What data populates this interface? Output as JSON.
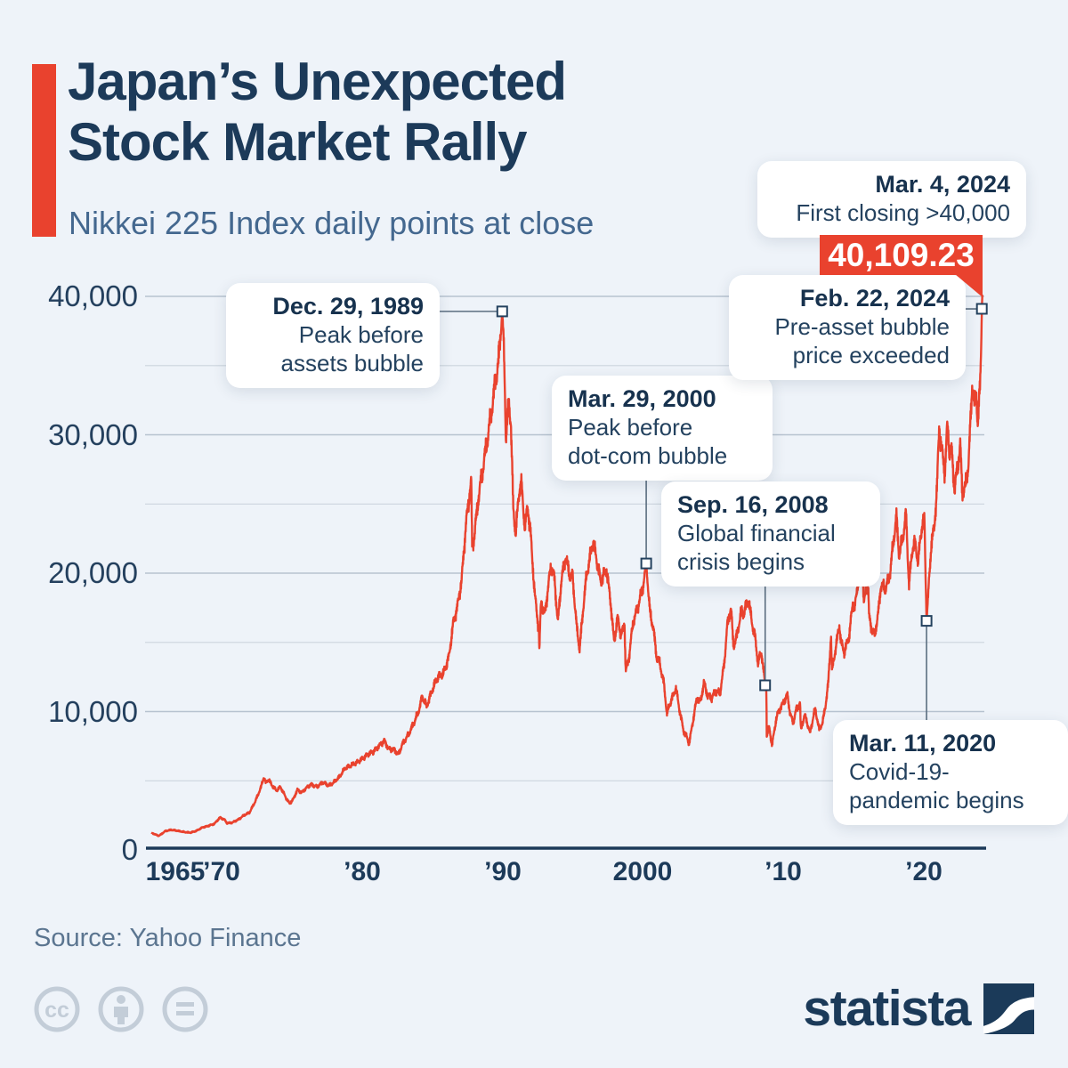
{
  "header": {
    "title_line1": "Japan’s Unexpected",
    "title_line2": "Stock Market Rally",
    "subtitle": "Nikkei 225 Index daily points at close"
  },
  "chart_data": {
    "type": "line",
    "title": "Nikkei 225 Index daily points at close",
    "xlabel": "",
    "ylabel": "",
    "xlim": [
      1965,
      2024.3
    ],
    "ylim": [
      0,
      42000
    ],
    "grid": "horizontal, minor step 5000, major step 10000",
    "legend": "none",
    "line_color": "#e9422e",
    "x_ticks": [
      {
        "year": 1965,
        "label": "1965",
        "dx": 27
      },
      {
        "year": 1970,
        "label": "’70",
        "dx": 0
      },
      {
        "year": 1980,
        "label": "’80",
        "dx": 0
      },
      {
        "year": 1990,
        "label": "’90",
        "dx": 0
      },
      {
        "year": 2000,
        "label": "2000",
        "dx": 0
      },
      {
        "year": 2010,
        "label": "’10",
        "dx": 0
      },
      {
        "year": 2020,
        "label": "’20",
        "dx": 0
      }
    ],
    "y_ticks": [
      {
        "v": 0,
        "label": "0"
      },
      {
        "v": 10000,
        "label": "10,000"
      },
      {
        "v": 20000,
        "label": "20,000"
      },
      {
        "v": 30000,
        "label": "30,000"
      },
      {
        "v": 40000,
        "label": "40,000"
      }
    ],
    "series": [
      {
        "name": "Nikkei 225 Index daily close",
        "points": [
          [
            1965.0,
            1250
          ],
          [
            1965.3,
            1110
          ],
          [
            1965.55,
            1020
          ],
          [
            1966.0,
            1360
          ],
          [
            1966.4,
            1450
          ],
          [
            1966.8,
            1400
          ],
          [
            1967.3,
            1300
          ],
          [
            1967.8,
            1250
          ],
          [
            1968.2,
            1380
          ],
          [
            1968.7,
            1650
          ],
          [
            1969.0,
            1715
          ],
          [
            1969.5,
            1900
          ],
          [
            1969.9,
            2350
          ],
          [
            1970.2,
            2200
          ],
          [
            1970.4,
            1930
          ],
          [
            1970.8,
            1990
          ],
          [
            1971.2,
            2200
          ],
          [
            1971.6,
            2500
          ],
          [
            1972.0,
            2712
          ],
          [
            1972.4,
            3500
          ],
          [
            1972.8,
            4500
          ],
          [
            1973.0,
            5250
          ],
          [
            1973.15,
            4850
          ],
          [
            1973.35,
            5100
          ],
          [
            1973.6,
            4650
          ],
          [
            1973.9,
            4300
          ],
          [
            1974.2,
            4550
          ],
          [
            1974.6,
            3750
          ],
          [
            1974.85,
            3350
          ],
          [
            1975.1,
            3650
          ],
          [
            1975.4,
            4350
          ],
          [
            1975.7,
            4150
          ],
          [
            1976.0,
            4450
          ],
          [
            1976.4,
            4750
          ],
          [
            1976.8,
            4550
          ],
          [
            1977.2,
            4900
          ],
          [
            1977.6,
            4650
          ],
          [
            1978.0,
            4870
          ],
          [
            1978.4,
            5300
          ],
          [
            1978.8,
            5900
          ],
          [
            1979.2,
            6100
          ],
          [
            1979.6,
            6300
          ],
          [
            1980.0,
            6560
          ],
          [
            1980.4,
            6900
          ],
          [
            1980.8,
            7100
          ],
          [
            1981.3,
            7600
          ],
          [
            1981.6,
            7900
          ],
          [
            1981.9,
            7300
          ],
          [
            1982.3,
            7250
          ],
          [
            1982.6,
            6900
          ],
          [
            1982.9,
            7700
          ],
          [
            1983.3,
            8300
          ],
          [
            1983.7,
            9200
          ],
          [
            1984.0,
            9890
          ],
          [
            1984.3,
            11100
          ],
          [
            1984.6,
            10350
          ],
          [
            1985.0,
            11540
          ],
          [
            1985.4,
            12500
          ],
          [
            1985.8,
            12750
          ],
          [
            1986.2,
            14000
          ],
          [
            1986.5,
            16400
          ],
          [
            1986.8,
            17600
          ],
          [
            1987.1,
            19500
          ],
          [
            1987.4,
            23500
          ],
          [
            1987.7,
            26000
          ],
          [
            1987.78,
            26646
          ],
          [
            1987.85,
            21900
          ],
          [
            1988.0,
            22700
          ],
          [
            1988.3,
            25500
          ],
          [
            1988.6,
            27500
          ],
          [
            1988.9,
            29500
          ],
          [
            1989.2,
            31500
          ],
          [
            1989.5,
            33800
          ],
          [
            1989.75,
            35500
          ],
          [
            1989.99,
            38915
          ],
          [
            1990.1,
            36500
          ],
          [
            1990.25,
            29800
          ],
          [
            1990.45,
            32300
          ],
          [
            1990.6,
            31000
          ],
          [
            1990.78,
            24500
          ],
          [
            1990.95,
            22900
          ],
          [
            1991.2,
            26000
          ],
          [
            1991.35,
            26500
          ],
          [
            1991.6,
            23300
          ],
          [
            1991.8,
            24800
          ],
          [
            1992.0,
            22980
          ],
          [
            1992.3,
            18500
          ],
          [
            1992.6,
            15800
          ],
          [
            1992.63,
            14309
          ],
          [
            1992.75,
            18000
          ],
          [
            1993.0,
            16920
          ],
          [
            1993.2,
            18500
          ],
          [
            1993.45,
            20500
          ],
          [
            1993.7,
            19700
          ],
          [
            1993.95,
            16400
          ],
          [
            1994.2,
            19500
          ],
          [
            1994.5,
            21200
          ],
          [
            1994.8,
            19800
          ],
          [
            1995.0,
            19720
          ],
          [
            1995.3,
            16000
          ],
          [
            1995.5,
            14485
          ],
          [
            1995.8,
            18000
          ],
          [
            1996.0,
            19870
          ],
          [
            1996.45,
            22300
          ],
          [
            1996.8,
            20500
          ],
          [
            1997.0,
            19360
          ],
          [
            1997.4,
            20300
          ],
          [
            1997.7,
            18000
          ],
          [
            1997.95,
            15000
          ],
          [
            1998.2,
            16800
          ],
          [
            1998.45,
            15500
          ],
          [
            1998.7,
            16300
          ],
          [
            1998.78,
            12880
          ],
          [
            1999.0,
            13840
          ],
          [
            1999.3,
            16400
          ],
          [
            1999.7,
            17800
          ],
          [
            2000.0,
            18930
          ],
          [
            2000.24,
            20700
          ],
          [
            2000.5,
            17200
          ],
          [
            2000.75,
            16000
          ],
          [
            2001.0,
            13786
          ],
          [
            2001.2,
            13500
          ],
          [
            2001.5,
            12000
          ],
          [
            2001.72,
            9800
          ],
          [
            2001.9,
            10500
          ],
          [
            2002.1,
            11000
          ],
          [
            2002.35,
            11700
          ],
          [
            2002.6,
            10200
          ],
          [
            2002.9,
            8579
          ],
          [
            2003.1,
            8200
          ],
          [
            2003.3,
            7700
          ],
          [
            2003.6,
            9500
          ],
          [
            2003.85,
            11000
          ],
          [
            2004.1,
            10677
          ],
          [
            2004.35,
            12100
          ],
          [
            2004.6,
            11200
          ],
          [
            2004.9,
            11000
          ],
          [
            2005.2,
            11489
          ],
          [
            2005.5,
            11350
          ],
          [
            2005.8,
            13500
          ],
          [
            2006.0,
            16111
          ],
          [
            2006.27,
            17563
          ],
          [
            2006.45,
            14700
          ],
          [
            2006.7,
            15500
          ],
          [
            2007.0,
            17226
          ],
          [
            2007.15,
            17000
          ],
          [
            2007.5,
            18100
          ],
          [
            2007.8,
            16300
          ],
          [
            2008.0,
            15308
          ],
          [
            2008.2,
            13500
          ],
          [
            2008.45,
            14300
          ],
          [
            2008.71,
            11900
          ],
          [
            2008.8,
            11500
          ],
          [
            2008.82,
            8300
          ],
          [
            2008.9,
            8500
          ],
          [
            2009.0,
            8860
          ],
          [
            2009.2,
            7568
          ],
          [
            2009.5,
            9500
          ],
          [
            2009.7,
            10100
          ],
          [
            2009.95,
            10546
          ],
          [
            2010.3,
            11200
          ],
          [
            2010.5,
            9800
          ],
          [
            2010.7,
            9200
          ],
          [
            2010.95,
            10229
          ],
          [
            2011.2,
            10600
          ],
          [
            2011.22,
            9500
          ],
          [
            2011.25,
            8700
          ],
          [
            2011.5,
            9700
          ],
          [
            2011.65,
            9400
          ],
          [
            2011.9,
            8455
          ],
          [
            2012.2,
            9900
          ],
          [
            2012.3,
            10100
          ],
          [
            2012.55,
            8700
          ],
          [
            2012.8,
            9200
          ],
          [
            2013.0,
            10395
          ],
          [
            2013.2,
            12000
          ],
          [
            2013.4,
            15600
          ],
          [
            2013.42,
            14500
          ],
          [
            2013.47,
            12900
          ],
          [
            2013.7,
            14400
          ],
          [
            2014.0,
            16291
          ],
          [
            2014.1,
            15000
          ],
          [
            2014.35,
            14300
          ],
          [
            2014.7,
            15500
          ],
          [
            2014.95,
            17900
          ],
          [
            2015.1,
            17500
          ],
          [
            2015.45,
            20500
          ],
          [
            2015.6,
            20700
          ],
          [
            2015.75,
            17700
          ],
          [
            2015.9,
            19000
          ],
          [
            2016.05,
            19034
          ],
          [
            2016.1,
            16900
          ],
          [
            2016.3,
            16000
          ],
          [
            2016.5,
            15500
          ],
          [
            2016.75,
            17000
          ],
          [
            2016.95,
            19114
          ],
          [
            2017.3,
            18900
          ],
          [
            2017.6,
            20000
          ],
          [
            2017.9,
            22765
          ],
          [
            2018.05,
            24124
          ],
          [
            2018.25,
            21300
          ],
          [
            2018.5,
            22500
          ],
          [
            2018.74,
            24270
          ],
          [
            2018.95,
            19150
          ],
          [
            2019.2,
            21800
          ],
          [
            2019.35,
            22200
          ],
          [
            2019.6,
            20900
          ],
          [
            2019.9,
            23650
          ],
          [
            2020.05,
            23850
          ],
          [
            2020.2,
            16553
          ],
          [
            2020.4,
            19700
          ],
          [
            2020.55,
            22300
          ],
          [
            2020.75,
            23200
          ],
          [
            2020.95,
            26400
          ],
          [
            2021.1,
            30467
          ],
          [
            2021.3,
            28800
          ],
          [
            2021.5,
            27280
          ],
          [
            2021.68,
            30670
          ],
          [
            2021.85,
            28800
          ],
          [
            2022.0,
            28792
          ],
          [
            2022.2,
            26000
          ],
          [
            2022.45,
            28000
          ],
          [
            2022.6,
            29200
          ],
          [
            2022.75,
            25900
          ],
          [
            2022.95,
            26095
          ],
          [
            2023.2,
            28000
          ],
          [
            2023.45,
            33753
          ],
          [
            2023.6,
            32000
          ],
          [
            2023.75,
            33000
          ],
          [
            2023.85,
            30500
          ],
          [
            2024.0,
            33464
          ],
          [
            2024.08,
            36000
          ],
          [
            2024.14,
            39098
          ],
          [
            2024.17,
            40109.23
          ]
        ]
      }
    ]
  },
  "annotations": [
    {
      "id": "dec-1989",
      "date": "Dec. 29, 1989",
      "l1": "Peak before",
      "l2": "assets bubble",
      "marker": {
        "year": 1989.99,
        "value": 38915
      }
    },
    {
      "id": "mar-2000",
      "date": "Mar. 29, 2000",
      "l1": "Peak before",
      "l2": "dot-com bubble",
      "marker": {
        "year": 2000.24,
        "value": 20700
      }
    },
    {
      "id": "sep-2008",
      "date": "Sep. 16, 2008",
      "l1": "Global financial",
      "l2": "crisis begins",
      "marker": {
        "year": 2008.71,
        "value": 11900
      }
    },
    {
      "id": "mar-2020",
      "date": "Mar. 11, 2020",
      "l1": "Covid-19-",
      "l2": "pandemic begins",
      "marker": {
        "year": 2020.2,
        "value": 16553
      }
    },
    {
      "id": "feb-2024",
      "date": "Feb. 22, 2024",
      "l1": "Pre-asset bubble",
      "l2": "price exceeded",
      "marker": {
        "year": 2024.14,
        "value": 39098
      }
    },
    {
      "id": "mar-2024",
      "date": "Mar. 4, 2024",
      "l1": "First closing >40,000",
      "badge": "40,109.23",
      "marker": {
        "year": 2024.17,
        "value": 40109.23
      }
    }
  ],
  "footer": {
    "source": "Source: Yahoo Finance",
    "logo_text": "statista",
    "cc_icons": [
      "cc-icon",
      "cc-by-person-icon",
      "cc-nd-equals-icon"
    ]
  },
  "colors": {
    "background": "#eef3f9",
    "title_navy": "#1c3a59",
    "subtitle_blue": "#44688f",
    "accent_red": "#e9422e",
    "grid_major": "#b7c3d0",
    "grid_minor": "#ccd5de",
    "connector_gray": "#5b6e80",
    "source_gray": "#5b7590",
    "cc_gray": "#c3cdd8"
  }
}
